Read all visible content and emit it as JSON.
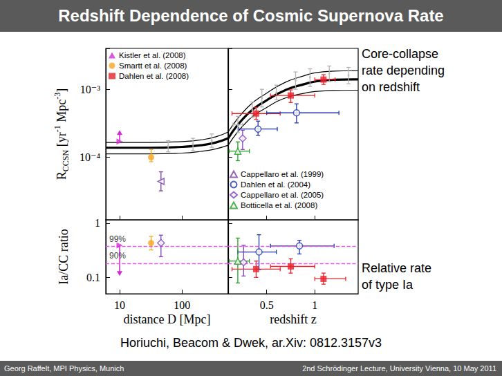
{
  "slide": {
    "title": "Redshift Dependence of Cosmic Supernova Rate",
    "notes": [
      "Core-collapse rate depending on redshift",
      "Relative rate of type Ia"
    ],
    "citation": "Horiuchi, Beacom & Dwek, ar.Xiv: 0812.3157v3",
    "footer_left": "Georg Raffelt, MPI Physics, Munich",
    "footer_right": "2nd Schrödinger Lecture, University Vienna, 10 May 2011"
  },
  "chart_data": {
    "type": "scatter",
    "panels": [
      {
        "ylabel": [
          "R",
          {
            "sub": "CCSN"
          },
          " [yr",
          {
            "sup": "-1"
          },
          " Mpc",
          {
            "sup": "-3"
          },
          "]"
        ],
        "xlim": [
          6,
          550
        ],
        "xticks": [
          10,
          100
        ],
        "ylim": [
          1.2e-05,
          0.004
        ],
        "yticks": [
          {
            "value": 0.0001,
            "label": "10⁻⁴"
          },
          {
            "value": 0.001,
            "label": "10⁻³"
          }
        ],
        "log": true,
        "tick_labels": "y"
      },
      {
        "xlim": [
          0.1,
          1.45
        ],
        "xticks": [
          0.5,
          1
        ],
        "ylim": [
          1.2e-05,
          0.004
        ],
        "yticks": [
          {
            "value": 0.0001,
            "label": "10⁻⁴"
          },
          {
            "value": 0.001,
            "label": "10⁻³"
          }
        ],
        "log": "y",
        "tick_labels": false
      },
      {
        "xlabel": "distance D [Mpc]",
        "ylabel": "Ia/CC ratio",
        "xlim": [
          6,
          550
        ],
        "xticks": [
          10,
          100
        ],
        "ylim": [
          0.05,
          1.15
        ],
        "yticks": [
          0.1,
          1
        ],
        "log": true,
        "tick_labels": true,
        "reference_lines": [
          {
            "value": 0.37,
            "label": "99%",
            "color": "#ee55ee",
            "line_style": "dashed"
          },
          {
            "value": 0.18,
            "label": "90%",
            "color": "#ee55ee",
            "line_style": "dashed"
          }
        ]
      },
      {
        "xlabel": "redshift z",
        "xlim": [
          0.1,
          1.45
        ],
        "xticks": [
          0.5,
          1
        ],
        "ylim": [
          0.05,
          1.15
        ],
        "yticks": [
          0.1,
          1
        ],
        "log": "y",
        "tick_labels": "x",
        "reference_lines": [
          {
            "value": 0.37,
            "color": "#ee55ee",
            "line_style": "dashed"
          },
          {
            "value": 0.18,
            "color": "#ee55ee",
            "line_style": "dashed"
          }
        ]
      }
    ],
    "series": [
      {
        "type": "scatter",
        "color": "#b4b4b4",
        "marker": "dot",
        "points": [
          {
            "panel": 0,
            "x": 60,
            "y": 0.000145,
            "y_err": [
              0.00012,
              0.000175
            ]
          },
          {
            "panel": 0,
            "x": 150,
            "y": 0.000155,
            "y_err": [
              0.000125,
              0.00019
            ]
          },
          {
            "panel": 0,
            "x": 300,
            "y": 0.000175,
            "y_err": [
              0.00014,
              0.00022
            ]
          },
          {
            "panel": 1,
            "x": 0.2,
            "y": 0.0003,
            "y_err": [
              0.00023,
              0.0004
            ],
            "x_err": [
              0.15,
              0.25
            ]
          },
          {
            "panel": 1,
            "x": 0.35,
            "y": 0.0005,
            "y_err": [
              0.00038,
              0.00065
            ]
          },
          {
            "panel": 1,
            "x": 0.45,
            "y": 0.00075,
            "y_err": [
              0.00055,
              0.001
            ]
          },
          {
            "panel": 1,
            "x": 0.6,
            "y": 0.0009,
            "y_err": [
              0.0007,
              0.00115
            ]
          },
          {
            "panel": 1,
            "x": 0.8,
            "y": 0.00135,
            "y_err": [
              0.001,
              0.0018
            ]
          },
          {
            "panel": 1,
            "x": 0.95,
            "y": 0.0015,
            "y_err": [
              0.0011,
              0.002
            ]
          },
          {
            "panel": 1,
            "x": 1.15,
            "y": 0.0017,
            "y_err": [
              0.0013,
              0.0022
            ]
          },
          {
            "panel": 1,
            "x": 1.35,
            "y": 0.0016,
            "y_err": [
              0.0012,
              0.0021
            ]
          }
        ]
      },
      {
        "type": "line",
        "color": "#000000",
        "line_style": "thin",
        "curves": [
          {
            "panel": 0,
            "x": [
              6,
              30,
              100,
              200,
              350,
              550
            ],
            "y": [
              0.000165,
              0.000165,
              0.00017,
              0.00018,
              0.0002,
              0.000235
            ]
          },
          {
            "panel": 1,
            "x": [
              0.1,
              0.3,
              0.5,
              0.7,
              0.9,
              1.0,
              1.2,
              1.45
            ],
            "y": [
              0.000235,
              0.00054,
              0.00088,
              0.00128,
              0.0016,
              0.00175,
              0.00185,
              0.00188
            ]
          }
        ]
      },
      {
        "type": "line",
        "color": "#000000",
        "line_style": "thin",
        "curves": [
          {
            "panel": 0,
            "x": [
              6,
              30,
              100,
              200,
              350,
              550
            ],
            "y": [
              0.000112,
              0.000112,
              0.000115,
              0.000122,
              0.000133,
              0.00015
            ]
          },
          {
            "panel": 1,
            "x": [
              0.1,
              0.3,
              0.5,
              0.7,
              0.9,
              1.0,
              1.2,
              1.45
            ],
            "y": [
              0.00015,
              0.00034,
              0.00054,
              0.00075,
              0.00088,
              0.00093,
              0.00096,
              0.00097
            ]
          }
        ]
      },
      {
        "type": "line",
        "color": "#000000",
        "line_style": "thick",
        "curves": [
          {
            "panel": 0,
            "x": [
              6,
              30,
              100,
              200,
              350,
              550
            ],
            "y": [
              0.000138,
              0.000138,
              0.000142,
              0.00015,
              0.000165,
              0.00019
            ]
          },
          {
            "panel": 1,
            "x": [
              0.1,
              0.3,
              0.5,
              0.7,
              0.9,
              1.0,
              1.2,
              1.45
            ],
            "y": [
              0.00019,
              0.00043,
              0.00069,
              0.00098,
              0.0012,
              0.0013,
              0.00138,
              0.0014
            ]
          }
        ]
      },
      {
        "name": "Kistler et al. (2008)",
        "color": "#d42ad4",
        "marker": "triangle-right",
        "legend": "upper left",
        "points": [
          {
            "panel": 0,
            "x": 10,
            "y": 0.00017,
            "arrow_to": 0.00025
          },
          {
            "panel": 2,
            "x": 10,
            "y": 0.39,
            "arrow_to": 0.106
          }
        ]
      },
      {
        "name": "Smartt et al. (2008)",
        "color": "#f5a623",
        "marker": "circle",
        "legend": "upper left",
        "points": [
          {
            "panel": 0,
            "x": 32,
            "y": 0.0001,
            "y_err": [
              8.6e-05,
              0.00013
            ]
          },
          {
            "panel": 2,
            "x": 32,
            "y": 0.43,
            "y_err": [
              0.32,
              0.57
            ]
          }
        ]
      },
      {
        "name": "Dahlen et al. (2008)",
        "color": "#e8202a",
        "marker": "square",
        "legend": "upper left",
        "points": [
          {
            "panel": 1,
            "x": 0.39,
            "y": 0.00044,
            "x_err": [
              0.14,
              0.64
            ],
            "y_err": [
              0.00036,
              0.00054
            ]
          },
          {
            "panel": 1,
            "x": 0.75,
            "y": 0.00081,
            "x_err": [
              0.54,
              1.0
            ],
            "y_err": [
              0.00064,
              0.00098
            ]
          },
          {
            "panel": 1,
            "x": 1.09,
            "y": 0.00139,
            "x_err": [
              1.0,
              1.21
            ],
            "y_err": [
              0.00118,
              0.00164
            ]
          },
          {
            "panel": 3,
            "x": 0.39,
            "y": 0.142,
            "x_err": [
              0.14,
              0.64
            ],
            "y_err": [
              0.1,
              0.2
            ]
          },
          {
            "panel": 3,
            "x": 0.75,
            "y": 0.159,
            "x_err": [
              0.54,
              1.0
            ],
            "y_err": [
              0.12,
              0.22
            ]
          },
          {
            "panel": 3,
            "x": 1.09,
            "y": 0.094,
            "x_err": [
              1.0,
              1.32
            ],
            "y_err": [
              0.075,
              0.12
            ]
          }
        ]
      },
      {
        "name": "Cappellaro et al. (1999)",
        "color": "#7b3fa0",
        "marker": "open-triangle-left",
        "legend": "center",
        "points": [
          {
            "panel": 0,
            "x": 46,
            "y": 4.4e-05,
            "y_err": [
              3.2e-05,
              6.1e-05
            ]
          }
        ]
      },
      {
        "name": "Dahlen et al. (2004)",
        "color": "#2233aa",
        "marker": "open-circle",
        "legend": "center",
        "points": [
          {
            "panel": 1,
            "x": 0.41,
            "y": 0.00026,
            "x_err": [
              0.21,
              0.61
            ],
            "y_err": [
              0.00021,
              0.00034
            ]
          },
          {
            "panel": 1,
            "x": 0.81,
            "y": 0.00045,
            "x_err": [
              0.5,
              1.25
            ],
            "y_err": [
              0.00032,
              0.00061
            ]
          },
          {
            "panel": 3,
            "x": 0.42,
            "y": 0.294,
            "x_err": [
              0.2,
              0.6
            ],
            "y_err": [
              0.14,
              0.61
            ]
          },
          {
            "panel": 3,
            "x": 0.84,
            "y": 0.38,
            "x_err": [
              0.54,
              1.2
            ],
            "y_err": [
              0.27,
              0.48
            ]
          }
        ]
      },
      {
        "name": "Cappellaro et al. (2005)",
        "color": "#8040c0",
        "marker": "open-diamond",
        "legend": "center",
        "points": [
          {
            "panel": 1,
            "x": 0.25,
            "y": 0.000189,
            "y_err": [
              0.00013,
              0.00025
            ]
          },
          {
            "panel": 2,
            "x": 46,
            "y": 0.43,
            "y_err": [
              0.24,
              0.6
            ]
          },
          {
            "panel": 3,
            "x": 0.26,
            "y": 0.19,
            "y_err": [
              0.106,
              0.39
            ]
          }
        ]
      },
      {
        "name": "Botticella et al. (2008)",
        "color": "#22a022",
        "marker": "open-triangle",
        "legend": "center",
        "points": [
          {
            "panel": 1,
            "x": 0.2,
            "y": 0.000123,
            "x_err": [
              0.11,
              0.32
            ],
            "y_err": [
              8.9e-05,
              0.000168
            ]
          },
          {
            "panel": 3,
            "x": 0.2,
            "y": 0.2,
            "x_err": [
              0.11,
              0.32
            ],
            "y_err": [
              0.079,
              0.53
            ]
          }
        ]
      }
    ]
  }
}
